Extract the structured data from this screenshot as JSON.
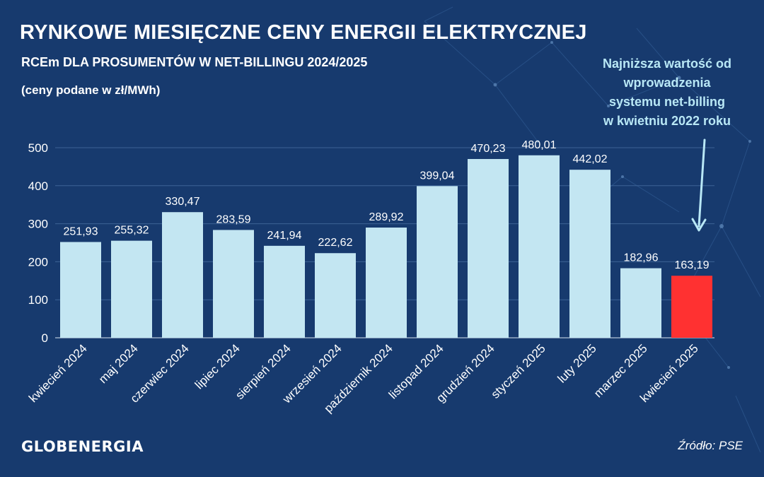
{
  "colors": {
    "background": "#173a6e",
    "bar": "#c3e6f2",
    "highlight_bar": "#ff3131",
    "annotation": "#b9e8f6",
    "text": "#ffffff"
  },
  "header": {
    "title": "RYNKOWE MIESIĘCZNE CENY ENERGII ELEKTRYCZNEJ",
    "subtitle": "RCEm DLA PROSUMENTÓW W NET-BILLINGU 2024/2025",
    "unit_note": "(ceny podane w zł/MWh)"
  },
  "annotation": {
    "lines": [
      "Najniższa wartość od",
      "wprowadzenia",
      "systemu net-billing",
      "w kwietniu 2022 roku"
    ]
  },
  "footer": {
    "logo": "GLOBENERGIA",
    "source": "Źródło: PSE"
  },
  "chart_data": {
    "type": "bar",
    "categories": [
      "kwiecień 2024",
      "maj 2024",
      "czerwiec 2024",
      "lipiec 2024",
      "sierpień 2024",
      "wrzesień 2024",
      "październik 2024",
      "listopad 2024",
      "grudzień 2024",
      "styczeń 2025",
      "luty 2025",
      "marzec 2025",
      "kwiecień 2025"
    ],
    "values": [
      251.93,
      255.32,
      330.47,
      283.59,
      241.94,
      222.62,
      289.92,
      399.04,
      470.23,
      480.01,
      442.02,
      182.96,
      163.19
    ],
    "value_labels": [
      "251,93",
      "255,32",
      "330,47",
      "283,59",
      "241,94",
      "222,62",
      "289,92",
      "399,04",
      "470,23",
      "480,01",
      "442,02",
      "182,96",
      "163,19"
    ],
    "highlight_index": 12,
    "yticks": [
      0,
      100,
      200,
      300,
      400,
      500
    ],
    "ylim": [
      0,
      500
    ],
    "grid": true,
    "legend": "none"
  }
}
